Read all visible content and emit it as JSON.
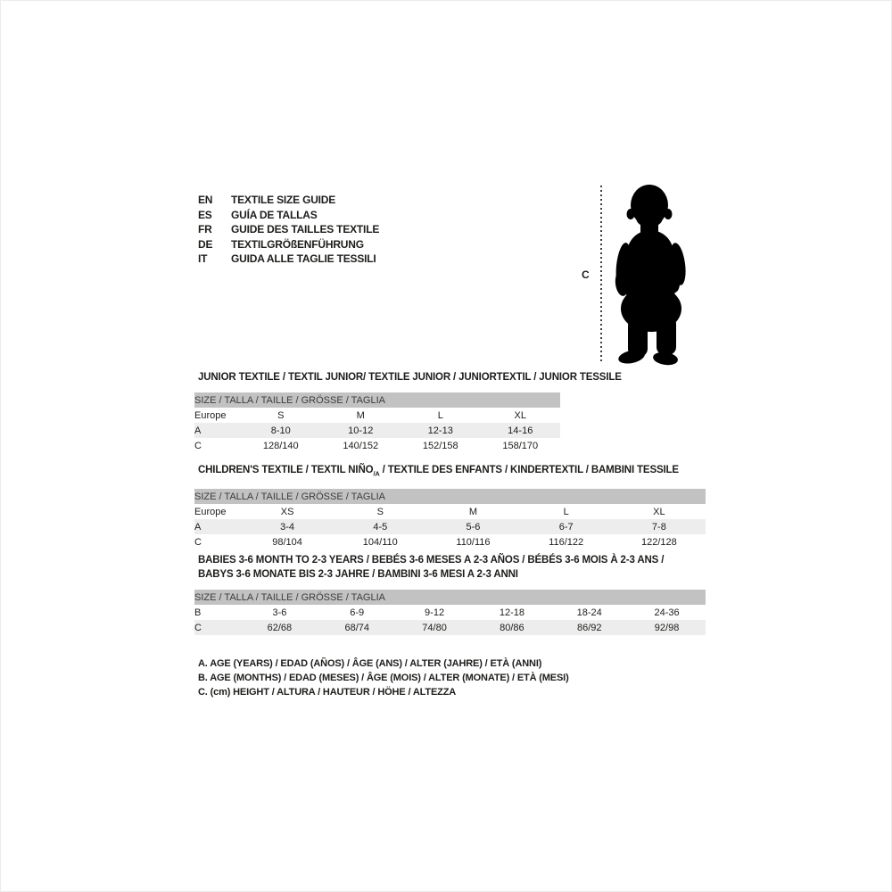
{
  "colors": {
    "text": "#1d1d1b",
    "band_bg": "#c2c2c2",
    "row_shaded_bg": "#ededed",
    "dotted_line": "#3f3f3f",
    "silhouette": "#000000"
  },
  "language_guide": {
    "items": [
      {
        "code": "EN",
        "label": "TEXTILE SIZE GUIDE"
      },
      {
        "code": "ES",
        "label": "GUÍA DE TALLAS"
      },
      {
        "code": "FR",
        "label": "GUIDE DES TAILLES TEXTILE"
      },
      {
        "code": "DE",
        "label": "TEXTILGRÖßENFÜHRUNG"
      },
      {
        "code": "IT",
        "label": "GUIDA ALLE TAGLIE TESSILI"
      }
    ]
  },
  "height_figure": {
    "label": "C",
    "figure": "toddler-silhouette"
  },
  "sections": [
    {
      "id": "junior",
      "title_parts": [
        [
          {
            "text": "JUNIOR TEXTILE / TEXTIL JUNIOR/ TEXTILE JUNIOR / JUNIORTEXTIL / JUNIOR TESSILE"
          }
        ]
      ],
      "band_label": "SIZE / TALLA / TAILLE / GRÖSSE / TAGLIA",
      "rows": [
        {
          "label": "Europe",
          "shaded": false,
          "values": [
            "S",
            "M",
            "L",
            "XL"
          ]
        },
        {
          "label": "A",
          "shaded": true,
          "values": [
            "8-10",
            "10-12",
            "12-13",
            "14-16"
          ]
        },
        {
          "label": "C",
          "shaded": false,
          "values": [
            "128/140",
            "140/152",
            "152/158",
            "158/170"
          ]
        }
      ]
    },
    {
      "id": "children",
      "title_parts": [
        [
          {
            "text": "CHILDREN'S TEXTILE / TEXTIL NIÑO"
          },
          {
            "text": "/A",
            "sub": true
          },
          {
            "text": " / TEXTILE DES ENFANTS / KINDERTEXTIL / BAMBINI TESSILE"
          }
        ]
      ],
      "band_label": "SIZE / TALLA / TAILLE / GRÖSSE / TAGLIA",
      "rows": [
        {
          "label": "Europe",
          "shaded": false,
          "values": [
            "XS",
            "S",
            "M",
            "L",
            "XL"
          ]
        },
        {
          "label": "A",
          "shaded": true,
          "values": [
            "3-4",
            "4-5",
            "5-6",
            "6-7",
            "7-8"
          ]
        },
        {
          "label": "C",
          "shaded": false,
          "values": [
            "98/104",
            "104/110",
            "110/116",
            "116/122",
            "122/128"
          ]
        }
      ]
    },
    {
      "id": "babies",
      "title_parts": [
        [
          {
            "text": "BABIES 3-6 MONTH TO 2-3 YEARS / BEBÉS 3-6 MESES A 2-3 AÑOS / BÉBÉS 3-6 MOIS À 2-3 ANS /"
          }
        ],
        [
          {
            "text": "BABYS 3-6 MONATE BIS 2-3 JAHRE / BAMBINI 3-6 MESI A 2-3 ANNI"
          }
        ]
      ],
      "band_label": "SIZE / TALLA / TAILLE / GRÖSSE / TAGLIA",
      "rows": [
        {
          "label": "B",
          "shaded": false,
          "values": [
            "3-6",
            "6-9",
            "9-12",
            "12-18",
            "18-24",
            "24-36"
          ]
        },
        {
          "label": "C",
          "shaded": true,
          "values": [
            "62/68",
            "68/74",
            "74/80",
            "80/86",
            "86/92",
            "92/98"
          ]
        }
      ]
    }
  ],
  "legend": {
    "lines": [
      "A. AGE (YEARS) / EDAD (AÑOS) / ÂGE (ANS) / ALTER (JAHRE) / ETÀ (ANNI)",
      "B. AGE (MONTHS) / EDAD (MESES) / ÂGE (MOIS) / ALTER (MONATE) / ETÀ (MESI)",
      "C. (cm) HEIGHT / ALTURA / HAUTEUR / HÖHE / ALTEZZA"
    ]
  }
}
